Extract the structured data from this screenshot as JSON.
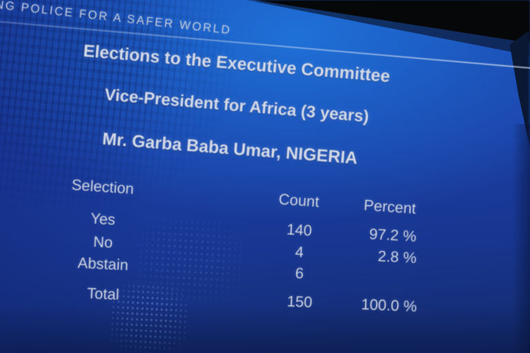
{
  "slide": {
    "banner_slogan": "ING POLICE FOR A SAFER WORLD",
    "title": "Elections to the Executive Committee",
    "subtitle": "Vice-President for Africa (3 years)",
    "candidate": "Mr. Garba Baba Umar, NIGERIA",
    "table": {
      "columns": {
        "selection": "Selection",
        "count": "Count",
        "percent": "Percent"
      },
      "rows": [
        {
          "selection": "Yes",
          "count": "140",
          "percent": "97.2 %"
        },
        {
          "selection": "No",
          "count": "4",
          "percent": "2.8 %"
        },
        {
          "selection": "Abstain",
          "count": "6",
          "percent": ""
        },
        {
          "selection": "Total",
          "count": "150",
          "percent": "100.0 %"
        }
      ]
    },
    "colors": {
      "screen_bright_blue": "#1766cd",
      "screen_base_blue": "#1c3fa6",
      "screen_dark_blue": "#142d74",
      "surround_black": "#07080a",
      "text_light": "#d3dae8"
    }
  }
}
